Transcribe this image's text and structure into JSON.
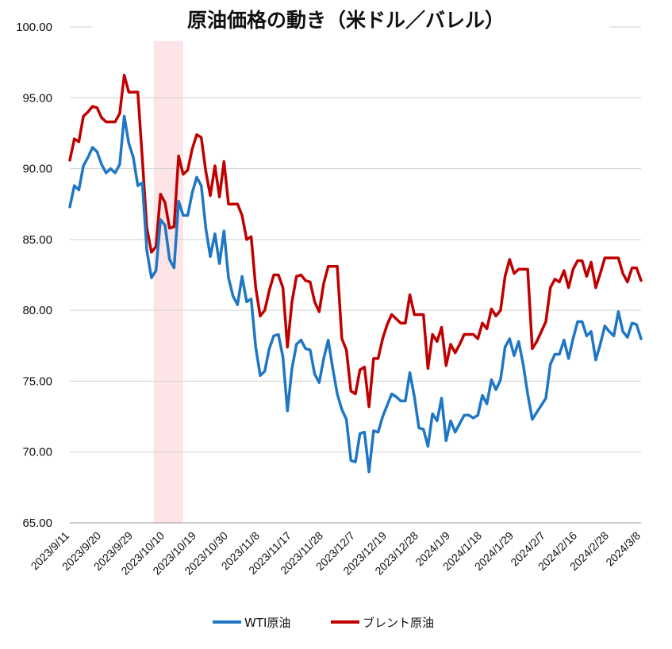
{
  "chart_data": {
    "type": "line",
    "title": "原油価格の動き（米ドル／バレル）",
    "xlabel": "",
    "ylabel": "",
    "ylim": [
      65,
      100
    ],
    "y_ticks": [
      "65.00",
      "70.00",
      "75.00",
      "80.00",
      "85.00",
      "90.00",
      "95.00",
      "100.00"
    ],
    "x_tick_labels": [
      "2023/9/11",
      "2023/9/20",
      "2023/9/29",
      "2023/10/10",
      "2023/10/19",
      "2023/10/30",
      "2023/11/8",
      "2023/11/17",
      "2023/11/28",
      "2023/12/7",
      "2023/12/19",
      "2023/12/28",
      "2024/1/9",
      "2024/1/18",
      "2024/1/29",
      "2024/2/7",
      "2024/2/16",
      "2024/2/28",
      "2024/3/8"
    ],
    "highlight_band": {
      "from": "2023/10/9",
      "to": "2023/10/18",
      "color": "#fde4e6"
    },
    "grid": "horizontal",
    "legend_position": "bottom-center",
    "colors": {
      "wti": "#1f77c4",
      "brent": "#c00000"
    },
    "series": [
      {
        "name": "WTI原油",
        "color": "#1f77c4",
        "values": [
          87.3,
          88.8,
          88.5,
          90.2,
          90.8,
          91.5,
          91.2,
          90.3,
          89.7,
          90.0,
          89.7,
          90.3,
          93.7,
          91.8,
          90.8,
          88.8,
          89.0,
          84.2,
          82.3,
          82.8,
          86.4,
          86.0,
          83.6,
          83.0,
          87.7,
          86.7,
          86.7,
          88.3,
          89.4,
          88.8,
          85.8,
          83.8,
          85.4,
          83.3,
          85.6,
          82.3,
          81.0,
          80.4,
          82.4,
          80.6,
          80.8,
          77.4,
          75.4,
          75.7,
          77.3,
          78.2,
          78.3,
          76.7,
          72.9,
          75.9,
          77.6,
          77.9,
          77.3,
          77.2,
          75.5,
          74.9,
          76.6,
          77.9,
          75.9,
          74.1,
          73.0,
          72.3,
          69.4,
          69.3,
          71.3,
          71.4,
          68.6,
          71.5,
          71.4,
          72.5,
          73.3,
          74.1,
          73.9,
          73.6,
          73.6,
          75.6,
          73.9,
          71.7,
          71.6,
          70.4,
          72.7,
          72.2,
          73.8,
          70.8,
          72.2,
          71.4,
          72.0,
          72.6,
          72.6,
          72.4,
          72.6,
          74.0,
          73.4,
          75.1,
          74.4,
          75.1,
          77.4,
          78.0,
          76.8,
          77.8,
          76.2,
          74.1,
          72.3,
          72.8,
          73.3,
          73.8,
          76.2,
          76.9,
          76.9,
          77.9,
          76.6,
          78.0,
          79.2,
          79.2,
          78.2,
          78.5,
          76.5,
          77.6,
          78.9,
          78.5,
          78.2,
          79.9,
          78.5,
          78.1,
          79.1,
          79.0,
          78.0
        ]
      },
      {
        "name": "ブレント原油",
        "color": "#c00000",
        "values": [
          90.6,
          92.1,
          91.9,
          93.7,
          94.0,
          94.4,
          94.3,
          93.6,
          93.3,
          93.3,
          93.3,
          93.9,
          96.6,
          95.4,
          95.4,
          95.4,
          90.7,
          85.8,
          84.1,
          84.5,
          88.2,
          87.6,
          85.8,
          85.9,
          90.9,
          89.6,
          89.9,
          91.4,
          92.4,
          92.2,
          89.8,
          88.1,
          90.2,
          88.0,
          90.5,
          87.5,
          87.5,
          87.5,
          86.7,
          85.0,
          85.2,
          81.6,
          79.6,
          80.0,
          81.4,
          82.5,
          82.5,
          81.6,
          77.4,
          80.6,
          82.4,
          82.5,
          82.1,
          82.0,
          80.6,
          79.9,
          81.9,
          83.1,
          83.1,
          83.1,
          78.0,
          77.2,
          74.3,
          74.1,
          75.8,
          76.0,
          73.2,
          76.6,
          76.6,
          78.0,
          79.0,
          79.7,
          79.4,
          79.1,
          79.1,
          81.1,
          79.7,
          79.7,
          79.7,
          75.9,
          78.3,
          77.8,
          78.8,
          76.1,
          77.6,
          77.0,
          77.6,
          78.3,
          78.3,
          78.3,
          78.0,
          79.1,
          78.7,
          80.1,
          79.6,
          80.0,
          82.4,
          83.6,
          82.6,
          82.9,
          82.9,
          82.9,
          77.3,
          77.8,
          78.5,
          79.2,
          81.6,
          82.2,
          82.0,
          82.8,
          81.6,
          82.9,
          83.5,
          83.5,
          82.4,
          83.4,
          81.6,
          82.6,
          83.7,
          83.7,
          83.7,
          83.7,
          82.6,
          82.0,
          83.0,
          83.0,
          82.1
        ]
      }
    ]
  }
}
